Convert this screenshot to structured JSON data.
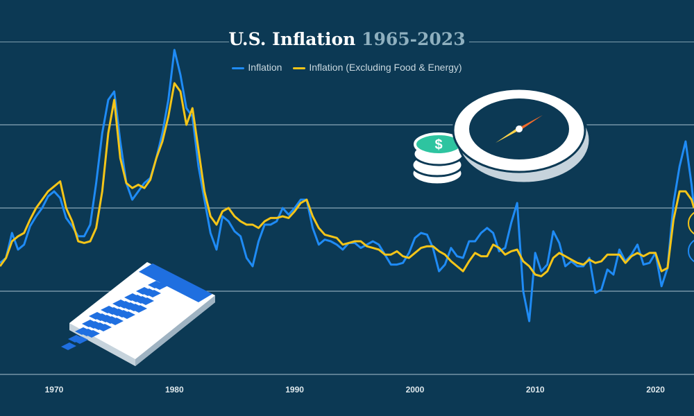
{
  "chart_data": {
    "type": "line",
    "title": "U.S. Inflation",
    "title_years": "1965-2023",
    "xlim": [
      1965.5,
      2023.2
    ],
    "ylim": [
      -5,
      15
    ],
    "grid": true,
    "legend_position": "top-center",
    "x_ticks": [
      "1970",
      "1980",
      "1990",
      "2000",
      "2010",
      "2020"
    ],
    "series": [
      {
        "name": "Inflation",
        "color": "#1f8bf5",
        "x": [
          1965.5,
          1966,
          1966.5,
          1967,
          1967.5,
          1968,
          1968.5,
          1969,
          1969.5,
          1970,
          1970.5,
          1971,
          1971.5,
          1972,
          1972.5,
          1973,
          1973.5,
          1974,
          1974.5,
          1975,
          1975.5,
          1976,
          1976.5,
          1977,
          1977.5,
          1978,
          1978.5,
          1979,
          1979.5,
          1980,
          1980.5,
          1981,
          1981.5,
          1982,
          1982.5,
          1983,
          1983.5,
          1984,
          1984.5,
          1985,
          1985.5,
          1986,
          1986.5,
          1987,
          1987.5,
          1988,
          1988.5,
          1989,
          1989.5,
          1990,
          1990.5,
          1991,
          1991.5,
          1992,
          1992.5,
          1993,
          1993.5,
          1994,
          1994.5,
          1995,
          1995.5,
          1996,
          1996.5,
          1997,
          1997.5,
          1998,
          1998.5,
          1999,
          1999.5,
          2000,
          2000.5,
          2001,
          2001.5,
          2002,
          2002.5,
          2003,
          2003.5,
          2004,
          2004.5,
          2005,
          2005.5,
          2006,
          2006.5,
          2007,
          2007.5,
          2008,
          2008.5,
          2009,
          2009.5,
          2010,
          2010.5,
          2011,
          2011.5,
          2012,
          2012.5,
          2013,
          2013.5,
          2014,
          2014.5,
          2015,
          2015.5,
          2016,
          2016.5,
          2017,
          2017.5,
          2018,
          2018.5,
          2019,
          2019.5,
          2020,
          2020.5,
          2021,
          2021.5,
          2022,
          2022.5,
          2023,
          2023.2
        ],
        "values": [
          1.7,
          2.0,
          3.5,
          2.5,
          2.8,
          3.9,
          4.5,
          5.0,
          5.7,
          6.0,
          5.6,
          4.4,
          3.9,
          3.3,
          3.3,
          4.0,
          6.5,
          9.5,
          11.5,
          12.0,
          9.0,
          6.5,
          5.5,
          6.0,
          6.5,
          6.8,
          8.0,
          9.5,
          11.5,
          14.5,
          13.0,
          11.0,
          10.5,
          7.5,
          5.5,
          3.5,
          2.5,
          4.5,
          4.2,
          3.6,
          3.3,
          2.0,
          1.5,
          3.0,
          4.0,
          4.0,
          4.2,
          5.0,
          4.6,
          5.0,
          5.5,
          5.5,
          3.8,
          2.8,
          3.1,
          3.0,
          2.8,
          2.5,
          2.9,
          2.9,
          2.6,
          2.8,
          3.0,
          2.8,
          2.2,
          1.6,
          1.6,
          1.7,
          2.3,
          3.2,
          3.5,
          3.4,
          2.6,
          1.2,
          1.6,
          2.6,
          2.1,
          2.0,
          3.0,
          3.0,
          3.5,
          3.8,
          3.5,
          2.4,
          2.6,
          4.1,
          5.3,
          0.0,
          -1.8,
          2.3,
          1.2,
          1.6,
          3.6,
          2.9,
          1.5,
          1.8,
          1.5,
          1.5,
          2.0,
          -0.1,
          0.1,
          1.3,
          1.0,
          2.5,
          1.8,
          2.2,
          2.8,
          1.6,
          1.7,
          2.3,
          0.3,
          1.4,
          5.3,
          7.5,
          9.0,
          6.4,
          5.0
        ]
      },
      {
        "name": "Inflation (Excluding Food & Energy)",
        "color": "#f5c518",
        "x": [
          1965.5,
          1966,
          1966.5,
          1967,
          1967.5,
          1968,
          1968.5,
          1969,
          1969.5,
          1970,
          1970.5,
          1971,
          1971.5,
          1972,
          1972.5,
          1973,
          1973.5,
          1974,
          1974.5,
          1975,
          1975.5,
          1976,
          1976.5,
          1977,
          1977.5,
          1978,
          1978.5,
          1979,
          1979.5,
          1980,
          1980.5,
          1981,
          1981.5,
          1982,
          1982.5,
          1983,
          1983.5,
          1984,
          1984.5,
          1985,
          1985.5,
          1986,
          1986.5,
          1987,
          1987.5,
          1988,
          1988.5,
          1989,
          1989.5,
          1990,
          1990.5,
          1991,
          1991.5,
          1992,
          1992.5,
          1993,
          1993.5,
          1994,
          1994.5,
          1995,
          1995.5,
          1996,
          1996.5,
          1997,
          1997.5,
          1998,
          1998.5,
          1999,
          1999.5,
          2000,
          2000.5,
          2001,
          2001.5,
          2002,
          2002.5,
          2003,
          2003.5,
          2004,
          2004.5,
          2005,
          2005.5,
          2006,
          2006.5,
          2007,
          2007.5,
          2008,
          2008.5,
          2009,
          2009.5,
          2010,
          2010.5,
          2011,
          2011.5,
          2012,
          2012.5,
          2013,
          2013.5,
          2014,
          2014.5,
          2015,
          2015.5,
          2016,
          2016.5,
          2017,
          2017.5,
          2018,
          2018.5,
          2019,
          2019.5,
          2020,
          2020.5,
          2021,
          2021.5,
          2022,
          2022.5,
          2023,
          2023.2
        ],
        "values": [
          1.5,
          2.0,
          3.0,
          3.3,
          3.5,
          4.3,
          5.0,
          5.5,
          6.0,
          6.3,
          6.6,
          5.0,
          4.2,
          3.0,
          2.9,
          3.0,
          3.8,
          6.0,
          9.5,
          11.5,
          8.0,
          6.5,
          6.2,
          6.4,
          6.2,
          6.7,
          8.0,
          9.0,
          10.5,
          12.5,
          12.0,
          10.0,
          11.0,
          8.5,
          6.0,
          4.5,
          4.0,
          4.8,
          5.0,
          4.5,
          4.2,
          4.0,
          4.0,
          3.8,
          4.2,
          4.4,
          4.4,
          4.5,
          4.4,
          4.8,
          5.3,
          5.5,
          4.5,
          3.8,
          3.4,
          3.3,
          3.2,
          2.8,
          2.9,
          3.0,
          3.0,
          2.7,
          2.6,
          2.5,
          2.2,
          2.2,
          2.4,
          2.1,
          2.0,
          2.3,
          2.6,
          2.7,
          2.7,
          2.4,
          2.2,
          1.8,
          1.5,
          1.2,
          1.8,
          2.3,
          2.1,
          2.1,
          2.8,
          2.6,
          2.2,
          2.4,
          2.5,
          1.8,
          1.5,
          1.0,
          0.9,
          1.2,
          2.0,
          2.3,
          2.1,
          1.9,
          1.7,
          1.6,
          1.9,
          1.7,
          1.8,
          2.2,
          2.2,
          2.2,
          1.7,
          2.1,
          2.3,
          2.1,
          2.3,
          2.3,
          1.2,
          1.4,
          4.3,
          6.0,
          6.0,
          5.5,
          5.0
        ]
      }
    ]
  }
}
